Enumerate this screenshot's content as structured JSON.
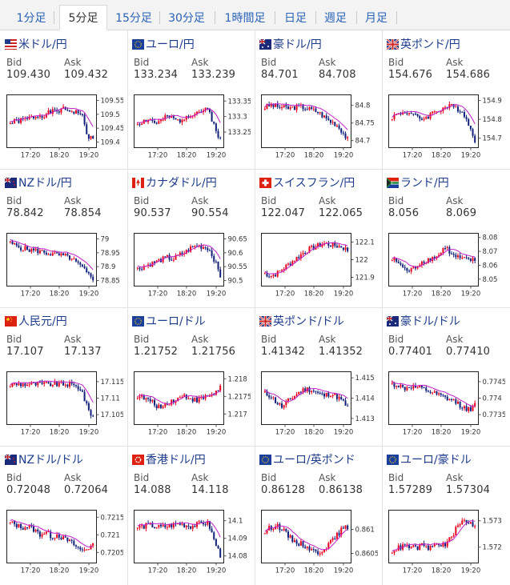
{
  "tabs": [
    {
      "label": "1分足",
      "active": false
    },
    {
      "label": "5分足",
      "active": true
    },
    {
      "label": "15分足",
      "active": false
    },
    {
      "label": "30分足",
      "active": false
    },
    {
      "label": "1時間足",
      "active": false
    },
    {
      "label": "日足",
      "active": false
    },
    {
      "label": "週足",
      "active": false
    },
    {
      "label": "月足",
      "active": false
    }
  ],
  "labels": {
    "bid": "Bid",
    "ask": "Ask"
  },
  "colors": {
    "up": "#e8001c",
    "down": "#10207a",
    "ma": "#c01ec8",
    "frame": "#222222",
    "title": "#1d3c8c"
  },
  "pairs": [
    {
      "name": "米ドル/円",
      "bid": "109.430",
      "ask": "109.432",
      "flag": "us",
      "chart": {
        "x_labels": [
          "17:20",
          "18:20",
          "19:20"
        ],
        "y_labels": [
          "109.55",
          "109.5",
          "109.45",
          "109.4"
        ],
        "y_range": [
          109.38,
          109.57
        ],
        "seed": 1,
        "path": [
          0.45,
          0.5,
          0.52,
          0.55,
          0.6,
          0.62,
          0.65,
          0.7,
          0.72,
          0.75,
          0.73,
          0.7,
          0.68,
          0.2,
          0.1
        ]
      }
    },
    {
      "name": "ユーロ/円",
      "bid": "133.234",
      "ask": "133.239",
      "flag": "eu",
      "chart": {
        "x_labels": [
          "17:20",
          "18:20",
          "19:20"
        ],
        "y_labels": [
          "133.35",
          "133.3",
          "133.25"
        ],
        "y_range": [
          133.2,
          133.37
        ],
        "seed": 2,
        "path": [
          0.45,
          0.5,
          0.55,
          0.45,
          0.5,
          0.6,
          0.55,
          0.5,
          0.6,
          0.65,
          0.7,
          0.72,
          0.75,
          0.4,
          0.1
        ]
      }
    },
    {
      "name": "豪ドル/円",
      "bid": "84.701",
      "ask": "84.708",
      "flag": "au",
      "chart": {
        "x_labels": [
          "17:20",
          "18:20",
          "19:20"
        ],
        "y_labels": [
          "84.8",
          "84.75",
          "84.7"
        ],
        "y_range": [
          84.68,
          84.83
        ],
        "seed": 3,
        "path": [
          0.8,
          0.85,
          0.82,
          0.8,
          0.78,
          0.8,
          0.82,
          0.78,
          0.75,
          0.7,
          0.6,
          0.5,
          0.45,
          0.3,
          0.1
        ]
      }
    },
    {
      "name": "英ポンド/円",
      "bid": "154.676",
      "ask": "154.686",
      "flag": "uk",
      "chart": {
        "x_labels": [
          "17:20",
          "18:20",
          "19:20"
        ],
        "y_labels": [
          "154.9",
          "154.8",
          "154.7"
        ],
        "y_range": [
          154.65,
          154.93
        ],
        "seed": 4,
        "path": [
          0.6,
          0.65,
          0.7,
          0.68,
          0.6,
          0.55,
          0.6,
          0.7,
          0.75,
          0.8,
          0.82,
          0.78,
          0.7,
          0.4,
          0.1
        ]
      }
    },
    {
      "name": "NZドル/円",
      "bid": "78.842",
      "ask": "78.854",
      "flag": "nz",
      "chart": {
        "x_labels": [
          "17:20",
          "18:20",
          "19:20"
        ],
        "y_labels": [
          "79",
          "78.95",
          "78.9",
          "78.85"
        ],
        "y_range": [
          78.83,
          79.02
        ],
        "seed": 5,
        "path": [
          0.85,
          0.8,
          0.75,
          0.72,
          0.7,
          0.68,
          0.65,
          0.62,
          0.6,
          0.58,
          0.55,
          0.45,
          0.35,
          0.2,
          0.1
        ]
      }
    },
    {
      "name": "カナダドル/円",
      "bid": "90.537",
      "ask": "90.554",
      "flag": "ca",
      "chart": {
        "x_labels": [
          "17:20",
          "18:20",
          "19:20"
        ],
        "y_labels": [
          "90.65",
          "90.6",
          "90.55",
          "90.5"
        ],
        "y_range": [
          90.48,
          90.67
        ],
        "seed": 6,
        "path": [
          0.3,
          0.35,
          0.4,
          0.45,
          0.5,
          0.55,
          0.5,
          0.6,
          0.65,
          0.75,
          0.8,
          0.78,
          0.75,
          0.5,
          0.15
        ]
      }
    },
    {
      "name": "スイスフラン/円",
      "bid": "122.047",
      "ask": "122.065",
      "flag": "ch",
      "chart": {
        "x_labels": [
          "17:20",
          "18:20",
          "19:20"
        ],
        "y_labels": [
          "122.1",
          "122",
          "121.9"
        ],
        "y_range": [
          121.85,
          122.15
        ],
        "seed": 7,
        "path": [
          0.2,
          0.15,
          0.2,
          0.3,
          0.4,
          0.5,
          0.6,
          0.7,
          0.75,
          0.8,
          0.85,
          0.82,
          0.8,
          0.78,
          0.7
        ]
      }
    },
    {
      "name": "ランド/円",
      "bid": "8.056",
      "ask": "8.069",
      "flag": "za",
      "chart": {
        "x_labels": [
          "17:20",
          "18:20",
          "19:20"
        ],
        "y_labels": [
          "8.08",
          "8.07",
          "8.06",
          "8.05"
        ],
        "y_range": [
          8.045,
          8.083
        ],
        "seed": 8,
        "path": [
          0.5,
          0.45,
          0.3,
          0.25,
          0.35,
          0.45,
          0.5,
          0.55,
          0.6,
          0.8,
          0.6,
          0.55,
          0.5,
          0.5,
          0.48
        ]
      }
    },
    {
      "name": "人民元/円",
      "bid": "17.107",
      "ask": "17.137",
      "flag": "cn",
      "chart": {
        "x_labels": [
          "17:20",
          "18:20",
          "19:20"
        ],
        "y_labels": [
          "17.115",
          "17.11",
          "17.105"
        ],
        "y_range": [
          17.102,
          17.118
        ],
        "seed": 9,
        "path": [
          0.78,
          0.8,
          0.8,
          0.8,
          0.8,
          0.8,
          0.8,
          0.8,
          0.8,
          0.8,
          0.8,
          0.75,
          0.7,
          0.3,
          0.1
        ]
      }
    },
    {
      "name": "ユーロ/ドル",
      "bid": "1.21752",
      "ask": "1.21756",
      "flag": "eu",
      "chart": {
        "x_labels": [
          "17:20",
          "18:20",
          "19:20"
        ],
        "y_labels": [
          "1.218",
          "1.2175",
          "1.217"
        ],
        "y_range": [
          1.2167,
          1.2182
        ],
        "seed": 10,
        "path": [
          0.55,
          0.5,
          0.45,
          0.35,
          0.3,
          0.4,
          0.45,
          0.5,
          0.55,
          0.5,
          0.45,
          0.5,
          0.55,
          0.6,
          0.75
        ]
      }
    },
    {
      "name": "英ポンド/ドル",
      "bid": "1.41342",
      "ask": "1.41352",
      "flag": "uk",
      "chart": {
        "x_labels": [
          "17:20",
          "18:20",
          "19:20"
        ],
        "y_labels": [
          "1.415",
          "1.414",
          "1.413"
        ],
        "y_range": [
          1.4127,
          1.4153
        ],
        "seed": 11,
        "path": [
          0.6,
          0.55,
          0.4,
          0.3,
          0.45,
          0.55,
          0.65,
          0.7,
          0.68,
          0.6,
          0.55,
          0.6,
          0.55,
          0.45,
          0.3
        ]
      }
    },
    {
      "name": "豪ドル/ドル",
      "bid": "0.77401",
      "ask": "0.77410",
      "flag": "au",
      "chart": {
        "x_labels": [
          "17:20",
          "18:20",
          "19:20"
        ],
        "y_labels": [
          "0.7745",
          "0.774",
          "0.7735"
        ],
        "y_range": [
          0.7732,
          0.7748
        ],
        "seed": 12,
        "path": [
          0.8,
          0.78,
          0.7,
          0.75,
          0.72,
          0.7,
          0.65,
          0.6,
          0.55,
          0.5,
          0.45,
          0.4,
          0.3,
          0.25,
          0.35
        ]
      }
    },
    {
      "name": "NZドル/ドル",
      "bid": "0.72048",
      "ask": "0.72064",
      "flag": "nz",
      "chart": {
        "x_labels": [
          "17:20",
          "18:20",
          "19:20"
        ],
        "y_labels": [
          "0.7215",
          "0.721",
          "0.7205"
        ],
        "y_range": [
          0.7202,
          0.7217
        ],
        "seed": 13,
        "path": [
          0.8,
          0.75,
          0.7,
          0.72,
          0.65,
          0.55,
          0.6,
          0.5,
          0.55,
          0.45,
          0.4,
          0.3,
          0.2,
          0.25,
          0.3
        ]
      }
    },
    {
      "name": "香港ドル/円",
      "bid": "14.088",
      "ask": "14.118",
      "flag": "hk",
      "chart": {
        "x_labels": [
          "17:20",
          "18:20",
          "19:20"
        ],
        "y_labels": [
          "14.1",
          "14.09",
          "14.08"
        ],
        "y_range": [
          14.076,
          14.106
        ],
        "seed": 14,
        "path": [
          0.7,
          0.72,
          0.75,
          0.72,
          0.7,
          0.72,
          0.75,
          0.78,
          0.75,
          0.72,
          0.75,
          0.8,
          0.78,
          0.4,
          0.1
        ]
      }
    },
    {
      "name": "ユーロ/英ポンド",
      "bid": "0.86128",
      "ask": "0.86138",
      "flag": "eu",
      "chart": {
        "x_labels": [
          "17:20",
          "18:20",
          "19:20"
        ],
        "y_labels": [
          "0.861",
          "0.8605"
        ],
        "y_range": [
          0.8603,
          0.8614
        ],
        "seed": 15,
        "path": [
          0.6,
          0.7,
          0.75,
          0.65,
          0.5,
          0.4,
          0.35,
          0.3,
          0.2,
          0.15,
          0.25,
          0.35,
          0.5,
          0.65,
          0.7
        ]
      }
    },
    {
      "name": "ユーロ/豪ドル",
      "bid": "1.57289",
      "ask": "1.57304",
      "flag": "eu",
      "chart": {
        "x_labels": [
          "17:20",
          "18:20",
          "19:20"
        ],
        "y_labels": [
          "1.573",
          "1.572"
        ],
        "y_range": [
          1.5714,
          1.5734
        ],
        "seed": 16,
        "path": [
          0.2,
          0.25,
          0.3,
          0.28,
          0.25,
          0.3,
          0.25,
          0.3,
          0.35,
          0.3,
          0.5,
          0.7,
          0.85,
          0.8,
          0.75
        ]
      }
    }
  ]
}
